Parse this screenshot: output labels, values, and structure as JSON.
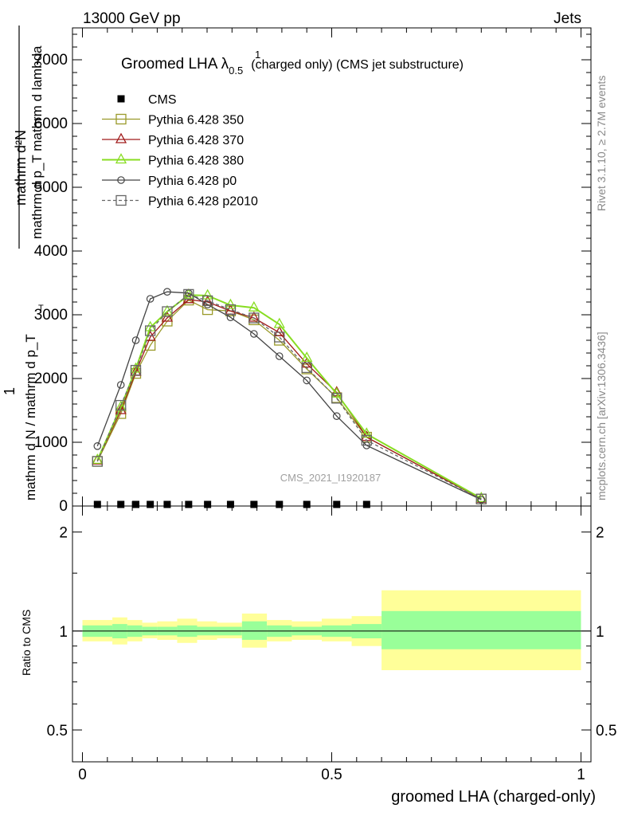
{
  "header": {
    "left": "13000 GeV pp",
    "right": "Jets"
  },
  "side": {
    "rivet": "Rivet 3.1.10, ≥ 2.7M events",
    "mcplots": "mcplots.cern.ch [arXiv:1306.3436]"
  },
  "watermark": "CMS_2021_I1920187",
  "colors": {
    "ratio_inner": "#99ff99",
    "ratio_outer": "#ffff99"
  },
  "chart_data": [
    {
      "type": "line",
      "title": "Groomed LHA λ",
      "title_sup": "1",
      "title_sub": "0.5",
      "title_rest": "(charged only) (CMS jet substructure)",
      "ylabel_top": "mathrm d²N",
      "ylabel_den": "mathrm d p_T mathrm d lambda",
      "ylabel_num1": "1",
      "ylabel_den1": "mathrm d N / mathrm d p_T",
      "ylabel_sub": "T",
      "ylim": [
        0,
        7500
      ],
      "xlim": [
        -0.02,
        1.02
      ],
      "yticks": [
        0,
        1000,
        2000,
        3000,
        4000,
        5000,
        6000,
        7000
      ],
      "ytick_labels": [
        "0",
        "1000",
        "2000",
        "3000",
        "4000",
        "5000",
        "6000",
        "7000"
      ],
      "legend_position": "top-left",
      "series": [
        {
          "name": "CMS",
          "color": "#000000",
          "marker": "square-filled",
          "dashed": false,
          "x": [
            0.03,
            0.077,
            0.107,
            0.136,
            0.17,
            0.213,
            0.251,
            0.297,
            0.344,
            0.395,
            0.45,
            0.51,
            0.57
          ],
          "y": [
            0,
            0,
            0,
            0,
            0,
            0,
            0,
            0,
            0,
            0,
            0,
            0,
            0
          ]
        },
        {
          "name": "Pythia 6.428 350",
          "color": "#9a9a2a",
          "marker": "square-open",
          "dashed": false,
          "x": [
            0.03,
            0.077,
            0.107,
            0.136,
            0.17,
            0.213,
            0.251,
            0.297,
            0.344,
            0.395,
            0.45,
            0.51,
            0.57,
            0.8
          ],
          "y": [
            700,
            1450,
            2080,
            2520,
            2900,
            3230,
            3080,
            3060,
            2920,
            2600,
            2150,
            1700,
            1080,
            110
          ]
        },
        {
          "name": "Pythia 6.428 370",
          "color": "#a01a1a",
          "marker": "triangle-open",
          "dashed": false,
          "x": [
            0.03,
            0.077,
            0.107,
            0.136,
            0.17,
            0.213,
            0.251,
            0.297,
            0.344,
            0.395,
            0.45,
            0.51,
            0.57,
            0.8
          ],
          "y": [
            710,
            1500,
            2100,
            2650,
            2950,
            3240,
            3200,
            3060,
            2950,
            2720,
            2230,
            1780,
            1080,
            110
          ]
        },
        {
          "name": "Pythia 6.428 380",
          "color": "#88dd22",
          "marker": "triangle-open",
          "dashed": false,
          "x": [
            0.03,
            0.077,
            0.107,
            0.136,
            0.17,
            0.213,
            0.251,
            0.297,
            0.344,
            0.395,
            0.45,
            0.51,
            0.57,
            0.8
          ],
          "y": [
            720,
            1550,
            2150,
            2800,
            3050,
            3310,
            3300,
            3150,
            3110,
            2850,
            2320,
            1760,
            1130,
            120
          ]
        },
        {
          "name": "Pythia 6.428 p0",
          "color": "#444444",
          "marker": "circle-open",
          "dashed": false,
          "x": [
            0.03,
            0.077,
            0.107,
            0.136,
            0.17,
            0.213,
            0.251,
            0.297,
            0.344,
            0.395,
            0.45,
            0.51,
            0.57,
            0.8
          ],
          "y": [
            940,
            1900,
            2600,
            3250,
            3360,
            3340,
            3160,
            2960,
            2700,
            2350,
            1970,
            1410,
            950,
            100
          ]
        },
        {
          "name": "Pythia 6.428 p2010",
          "color": "#666666",
          "marker": "square-open",
          "dashed": true,
          "x": [
            0.03,
            0.077,
            0.107,
            0.136,
            0.17,
            0.213,
            0.251,
            0.297,
            0.344,
            0.395,
            0.45,
            0.51,
            0.57,
            0.8
          ],
          "y": [
            700,
            1580,
            2130,
            2750,
            3050,
            3320,
            3220,
            3080,
            2950,
            2650,
            2170,
            1690,
            1030,
            110
          ]
        }
      ]
    },
    {
      "type": "area",
      "ylabel": "Ratio to CMS",
      "xlabel": "groomed LHA (charged-only)",
      "xlim": [
        -0.02,
        1.02
      ],
      "ylim": [
        0.4,
        2.4
      ],
      "log_y": true,
      "xticks": [
        0,
        0.5,
        1
      ],
      "xtick_labels": [
        "0",
        "0.5",
        "1"
      ],
      "yticks": [
        0.5,
        1,
        2
      ],
      "ytick_labels": [
        "0.5",
        "1",
        "2"
      ],
      "bins": [
        {
          "x0": 0.0,
          "x1": 0.06,
          "inner": [
            0.96,
            1.04
          ],
          "outer": [
            0.93,
            1.08
          ]
        },
        {
          "x0": 0.06,
          "x1": 0.09,
          "inner": [
            0.95,
            1.05
          ],
          "outer": [
            0.91,
            1.1
          ]
        },
        {
          "x0": 0.09,
          "x1": 0.12,
          "inner": [
            0.96,
            1.04
          ],
          "outer": [
            0.93,
            1.08
          ]
        },
        {
          "x0": 0.12,
          "x1": 0.15,
          "inner": [
            0.97,
            1.03
          ],
          "outer": [
            0.95,
            1.06
          ]
        },
        {
          "x0": 0.15,
          "x1": 0.19,
          "inner": [
            0.97,
            1.03
          ],
          "outer": [
            0.94,
            1.07
          ]
        },
        {
          "x0": 0.19,
          "x1": 0.23,
          "inner": [
            0.96,
            1.04
          ],
          "outer": [
            0.92,
            1.09
          ]
        },
        {
          "x0": 0.23,
          "x1": 0.27,
          "inner": [
            0.97,
            1.03
          ],
          "outer": [
            0.94,
            1.07
          ]
        },
        {
          "x0": 0.27,
          "x1": 0.32,
          "inner": [
            0.97,
            1.03
          ],
          "outer": [
            0.95,
            1.06
          ]
        },
        {
          "x0": 0.32,
          "x1": 0.37,
          "inner": [
            0.94,
            1.07
          ],
          "outer": [
            0.89,
            1.13
          ]
        },
        {
          "x0": 0.37,
          "x1": 0.42,
          "inner": [
            0.96,
            1.04
          ],
          "outer": [
            0.93,
            1.08
          ]
        },
        {
          "x0": 0.42,
          "x1": 0.48,
          "inner": [
            0.97,
            1.03
          ],
          "outer": [
            0.94,
            1.07
          ]
        },
        {
          "x0": 0.48,
          "x1": 0.54,
          "inner": [
            0.96,
            1.04
          ],
          "outer": [
            0.93,
            1.09
          ]
        },
        {
          "x0": 0.54,
          "x1": 0.6,
          "inner": [
            0.95,
            1.05
          ],
          "outer": [
            0.9,
            1.11
          ]
        },
        {
          "x0": 0.6,
          "x1": 1.0,
          "inner": [
            0.88,
            1.15
          ],
          "outer": [
            0.76,
            1.33
          ]
        }
      ]
    }
  ]
}
